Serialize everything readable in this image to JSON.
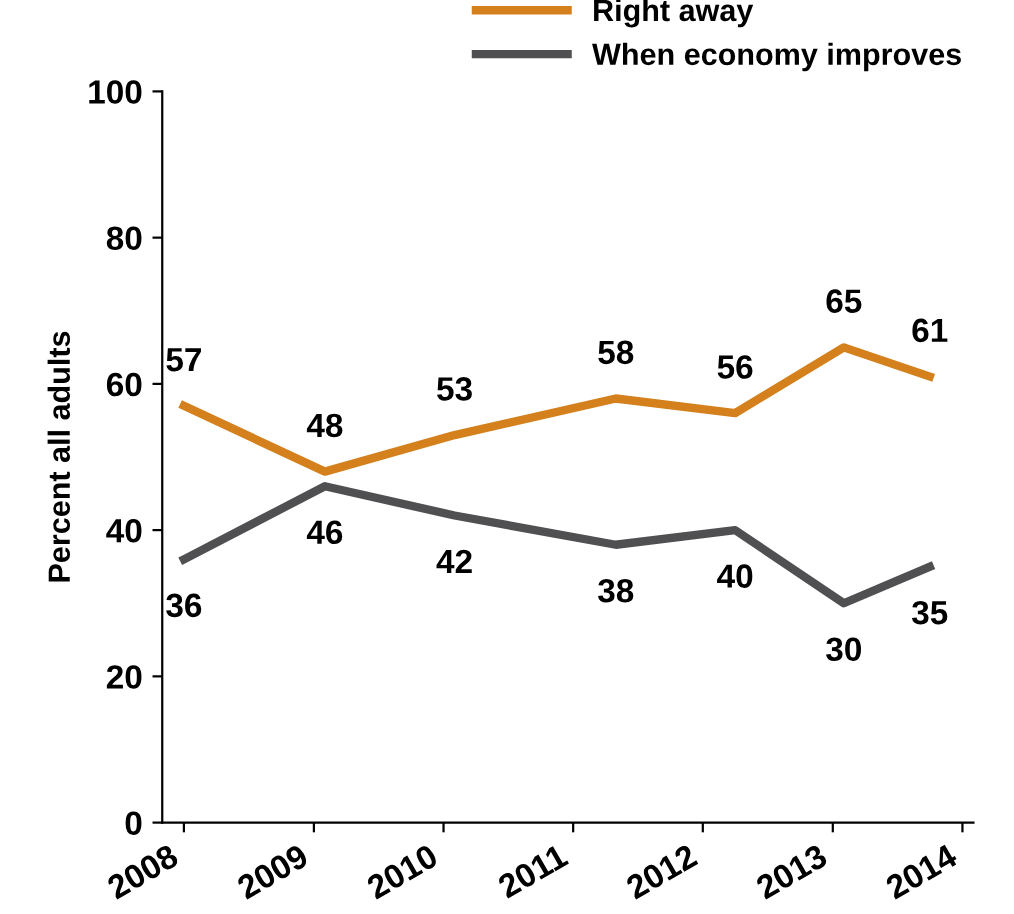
{
  "chart_data": {
    "type": "line",
    "ylabel": "Percent all adults",
    "x": [
      "2008-01",
      "2009-02",
      "2010-02",
      "2011-05",
      "2012-04",
      "2013-02",
      "2013-10"
    ],
    "series": [
      {
        "name": "Right away",
        "color": "#d4801c",
        "values": [
          57,
          48,
          53,
          58,
          56,
          65,
          61
        ]
      },
      {
        "name": "When economy improves",
        "color": "#505052",
        "values": [
          36,
          46,
          42,
          38,
          40,
          30,
          35
        ]
      }
    ],
    "xlim": [
      "2007-11",
      "2014-02"
    ],
    "xticks": [
      "2008",
      "2009",
      "2010",
      "2011",
      "2012",
      "2013",
      "2014"
    ],
    "ylim": [
      0,
      100
    ],
    "yticks": [
      0,
      20,
      40,
      60,
      80,
      100
    ],
    "grid": false,
    "legend": "top right",
    "marker": "none",
    "line_style": "solid",
    "data_labels": true
  }
}
